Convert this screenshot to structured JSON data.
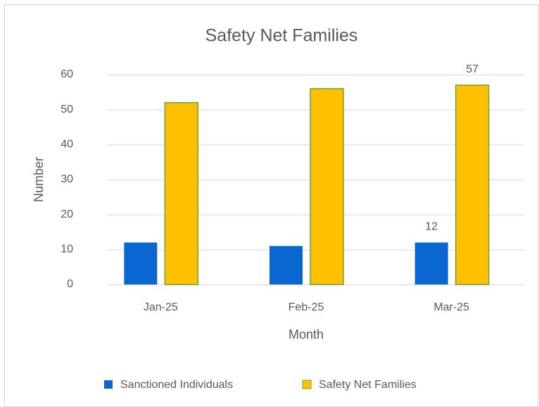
{
  "chart_data": {
    "type": "bar",
    "title": "Safety Net Families",
    "x_label": "Month",
    "y_label": "Number",
    "categories": [
      "Jan-25",
      "Feb-25",
      "Mar-25"
    ],
    "series": [
      {
        "name": "Sanctioned Individuals",
        "color": "#0a66d0",
        "values": [
          12,
          11,
          12
        ],
        "value_labels": [
          null,
          null,
          "12"
        ]
      },
      {
        "name": "Safety Net Families",
        "color": "#ffc000",
        "edge_color": "#6aa33a",
        "values": [
          52,
          56,
          57
        ],
        "value_labels": [
          null,
          null,
          "57"
        ]
      }
    ],
    "ylim": [
      0,
      60
    ],
    "yticks": [
      0,
      10,
      20,
      30,
      40,
      50,
      60
    ],
    "grid": true,
    "legend": "bottom"
  }
}
